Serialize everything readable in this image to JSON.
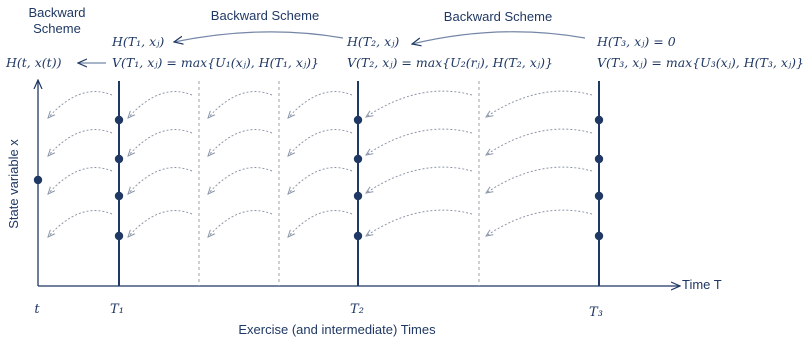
{
  "colors": {
    "ink": "#1f3864",
    "arc": "#8c96a8",
    "divider": "#a0a0a0",
    "background": "#ffffff"
  },
  "labels": {
    "backward_left_line1": "Backward",
    "backward_left_line2": "Scheme",
    "backward_middle": "Backward Scheme",
    "backward_right": "Backward Scheme",
    "y_axis": "State variable x",
    "x_axis": "Time T",
    "bottom_caption": "Exercise (and intermediate) Times"
  },
  "equations": {
    "h_t": "H(t, x(t))",
    "h_t1": "H(T₁, xⱼ)",
    "v_t1": "V(T₁, xⱼ) = max{U₁(xⱼ), H(T₁, xⱼ)}",
    "h_t2": "H(T₂, xⱼ)",
    "v_t2": "V(T₂, xⱼ) = max{U₂(rⱼ), H(T₂, xⱼ)}",
    "h_t3": "H(T₃, xⱼ) = 0",
    "v_t3": "V(T₃, xⱼ) = max{U₃(xⱼ), H(T₃, xⱼ)}"
  },
  "time_ticks": [
    "t",
    "T₁",
    "T₂",
    "T₃"
  ],
  "exercise_times": [
    "T₁",
    "T₂",
    "T₃"
  ],
  "state_grid_points_per_time": 4,
  "initial_point": "t"
}
